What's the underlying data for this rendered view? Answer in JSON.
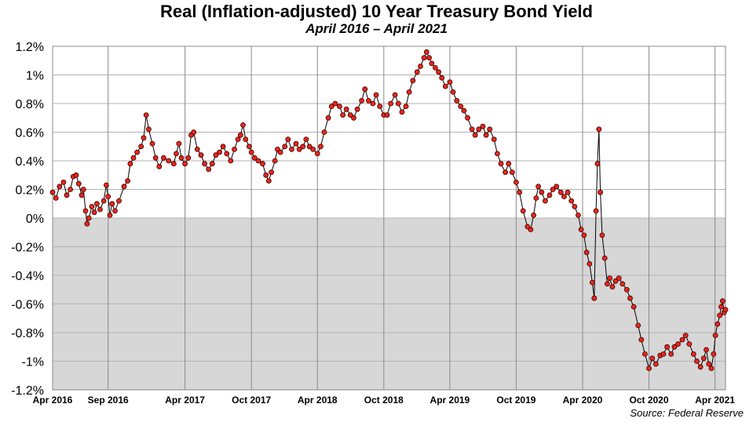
{
  "chart_data": {
    "type": "line",
    "title": "Real (Inflation-adjusted) 10 Year Treasury Bond Yield",
    "subtitle": "April 2016 – April 2021",
    "source": "Source: Federal Reserve",
    "ylim": [
      -1.2,
      1.2
    ],
    "y_ticks": [
      1.2,
      1.0,
      0.8,
      0.6,
      0.4,
      0.2,
      0.0,
      -0.2,
      -0.4,
      -0.6,
      -0.8,
      -1.0,
      -1.2
    ],
    "y_tick_labels": [
      "1.2%",
      "1%",
      "0.8%",
      "0.6%",
      "0.4%",
      "0.2%",
      "0%",
      "-0.2%",
      "-0.4%",
      "-0.6%",
      "-0.8%",
      "-1%",
      "-1.2%"
    ],
    "x_tick_labels": [
      "Apr 2016",
      "Sep 2016",
      "Apr 2017",
      "Oct 2017",
      "Apr 2018",
      "Oct 2018",
      "Apr 2019",
      "Oct 2019",
      "Apr 2020",
      "Oct 2020",
      "Apr 2021"
    ],
    "x_tick_dates": [
      "2016-04",
      "2016-09",
      "2017-04",
      "2017-10",
      "2018-04",
      "2018-10",
      "2019-04",
      "2019-10",
      "2020-04",
      "2020-10",
      "2021-04"
    ],
    "grid": true,
    "negative_region_shaded": true,
    "colors": {
      "line": "#000000",
      "marker_fill": "#e8261c",
      "marker_edge": "#3a0000",
      "negative_shade": "#d7d7d7",
      "grid": "#b3b3b3"
    },
    "series": [
      {
        "values": [
          [
            "2016-04-01",
            0.18
          ],
          [
            "2016-04-10",
            0.14
          ],
          [
            "2016-04-20",
            0.22
          ],
          [
            "2016-05-01",
            0.25
          ],
          [
            "2016-05-10",
            0.16
          ],
          [
            "2016-05-20",
            0.2
          ],
          [
            "2016-05-28",
            0.29
          ],
          [
            "2016-06-05",
            0.3
          ],
          [
            "2016-06-12",
            0.24
          ],
          [
            "2016-06-20",
            0.16
          ],
          [
            "2016-06-25",
            0.2
          ],
          [
            "2016-07-01",
            0.05
          ],
          [
            "2016-07-05",
            -0.04
          ],
          [
            "2016-07-10",
            0.0
          ],
          [
            "2016-07-18",
            0.08
          ],
          [
            "2016-07-25",
            0.04
          ],
          [
            "2016-08-01",
            0.1
          ],
          [
            "2016-08-10",
            0.06
          ],
          [
            "2016-08-20",
            0.12
          ],
          [
            "2016-08-27",
            0.23
          ],
          [
            "2016-09-01",
            0.15
          ],
          [
            "2016-09-06",
            0.02
          ],
          [
            "2016-09-12",
            0.1
          ],
          [
            "2016-09-20",
            0.05
          ],
          [
            "2016-10-01",
            0.12
          ],
          [
            "2016-10-15",
            0.22
          ],
          [
            "2016-10-25",
            0.26
          ],
          [
            "2016-11-01",
            0.38
          ],
          [
            "2016-11-10",
            0.42
          ],
          [
            "2016-11-20",
            0.46
          ],
          [
            "2016-12-01",
            0.5
          ],
          [
            "2016-12-08",
            0.56
          ],
          [
            "2016-12-15",
            0.72
          ],
          [
            "2016-12-22",
            0.62
          ],
          [
            "2017-01-01",
            0.52
          ],
          [
            "2017-01-10",
            0.42
          ],
          [
            "2017-01-20",
            0.36
          ],
          [
            "2017-02-01",
            0.42
          ],
          [
            "2017-02-15",
            0.4
          ],
          [
            "2017-03-01",
            0.38
          ],
          [
            "2017-03-08",
            0.45
          ],
          [
            "2017-03-15",
            0.52
          ],
          [
            "2017-03-22",
            0.42
          ],
          [
            "2017-04-01",
            0.38
          ],
          [
            "2017-04-10",
            0.42
          ],
          [
            "2017-04-18",
            0.58
          ],
          [
            "2017-04-25",
            0.6
          ],
          [
            "2017-05-05",
            0.48
          ],
          [
            "2017-05-15",
            0.44
          ],
          [
            "2017-05-25",
            0.38
          ],
          [
            "2017-06-05",
            0.34
          ],
          [
            "2017-06-15",
            0.38
          ],
          [
            "2017-06-25",
            0.44
          ],
          [
            "2017-07-05",
            0.46
          ],
          [
            "2017-07-15",
            0.5
          ],
          [
            "2017-07-25",
            0.45
          ],
          [
            "2017-08-05",
            0.4
          ],
          [
            "2017-08-15",
            0.48
          ],
          [
            "2017-08-25",
            0.55
          ],
          [
            "2017-09-01",
            0.58
          ],
          [
            "2017-09-08",
            0.65
          ],
          [
            "2017-09-15",
            0.55
          ],
          [
            "2017-09-25",
            0.5
          ],
          [
            "2017-10-01",
            0.46
          ],
          [
            "2017-10-10",
            0.42
          ],
          [
            "2017-10-20",
            0.4
          ],
          [
            "2017-11-01",
            0.38
          ],
          [
            "2017-11-10",
            0.3
          ],
          [
            "2017-11-18",
            0.26
          ],
          [
            "2017-11-25",
            0.32
          ],
          [
            "2017-12-05",
            0.4
          ],
          [
            "2017-12-12",
            0.48
          ],
          [
            "2017-12-20",
            0.46
          ],
          [
            "2018-01-01",
            0.5
          ],
          [
            "2018-01-10",
            0.55
          ],
          [
            "2018-01-20",
            0.48
          ],
          [
            "2018-02-01",
            0.52
          ],
          [
            "2018-02-10",
            0.48
          ],
          [
            "2018-02-20",
            0.5
          ],
          [
            "2018-03-01",
            0.55
          ],
          [
            "2018-03-10",
            0.5
          ],
          [
            "2018-03-20",
            0.48
          ],
          [
            "2018-04-01",
            0.45
          ],
          [
            "2018-04-10",
            0.5
          ],
          [
            "2018-04-20",
            0.6
          ],
          [
            "2018-05-01",
            0.7
          ],
          [
            "2018-05-10",
            0.78
          ],
          [
            "2018-05-20",
            0.8
          ],
          [
            "2018-06-01",
            0.78
          ],
          [
            "2018-06-10",
            0.72
          ],
          [
            "2018-06-20",
            0.76
          ],
          [
            "2018-07-01",
            0.72
          ],
          [
            "2018-07-10",
            0.7
          ],
          [
            "2018-07-20",
            0.76
          ],
          [
            "2018-08-01",
            0.82
          ],
          [
            "2018-08-10",
            0.9
          ],
          [
            "2018-08-20",
            0.82
          ],
          [
            "2018-09-01",
            0.8
          ],
          [
            "2018-09-10",
            0.86
          ],
          [
            "2018-09-20",
            0.78
          ],
          [
            "2018-10-01",
            0.72
          ],
          [
            "2018-10-10",
            0.72
          ],
          [
            "2018-10-20",
            0.8
          ],
          [
            "2018-11-01",
            0.86
          ],
          [
            "2018-11-10",
            0.8
          ],
          [
            "2018-11-20",
            0.74
          ],
          [
            "2018-12-01",
            0.78
          ],
          [
            "2018-12-10",
            0.88
          ],
          [
            "2018-12-20",
            0.96
          ],
          [
            "2019-01-01",
            1.02
          ],
          [
            "2019-01-10",
            1.06
          ],
          [
            "2019-01-20",
            1.12
          ],
          [
            "2019-01-27",
            1.16
          ],
          [
            "2019-02-03",
            1.12
          ],
          [
            "2019-02-10",
            1.08
          ],
          [
            "2019-02-20",
            1.05
          ],
          [
            "2019-03-01",
            1.02
          ],
          [
            "2019-03-10",
            0.98
          ],
          [
            "2019-03-20",
            0.92
          ],
          [
            "2019-04-01",
            0.95
          ],
          [
            "2019-04-10",
            0.88
          ],
          [
            "2019-04-20",
            0.82
          ],
          [
            "2019-05-01",
            0.78
          ],
          [
            "2019-05-10",
            0.75
          ],
          [
            "2019-05-20",
            0.7
          ],
          [
            "2019-06-01",
            0.62
          ],
          [
            "2019-06-10",
            0.58
          ],
          [
            "2019-06-20",
            0.62
          ],
          [
            "2019-07-01",
            0.64
          ],
          [
            "2019-07-10",
            0.58
          ],
          [
            "2019-07-20",
            0.62
          ],
          [
            "2019-08-01",
            0.55
          ],
          [
            "2019-08-10",
            0.45
          ],
          [
            "2019-08-20",
            0.38
          ],
          [
            "2019-09-01",
            0.32
          ],
          [
            "2019-09-10",
            0.38
          ],
          [
            "2019-09-20",
            0.32
          ],
          [
            "2019-10-01",
            0.25
          ],
          [
            "2019-10-10",
            0.18
          ],
          [
            "2019-10-20",
            0.05
          ],
          [
            "2019-11-01",
            -0.06
          ],
          [
            "2019-11-10",
            -0.08
          ],
          [
            "2019-11-18",
            0.02
          ],
          [
            "2019-11-25",
            0.14
          ],
          [
            "2019-12-01",
            0.22
          ],
          [
            "2019-12-10",
            0.18
          ],
          [
            "2019-12-20",
            0.12
          ],
          [
            "2020-01-01",
            0.16
          ],
          [
            "2020-01-10",
            0.2
          ],
          [
            "2020-01-20",
            0.22
          ],
          [
            "2020-02-01",
            0.18
          ],
          [
            "2020-02-10",
            0.15
          ],
          [
            "2020-02-20",
            0.18
          ],
          [
            "2020-03-01",
            0.12
          ],
          [
            "2020-03-10",
            0.08
          ],
          [
            "2020-03-20",
            0.02
          ],
          [
            "2020-03-28",
            -0.08
          ],
          [
            "2020-04-05",
            -0.12
          ],
          [
            "2020-04-12",
            -0.24
          ],
          [
            "2020-04-20",
            -0.32
          ],
          [
            "2020-04-28",
            -0.45
          ],
          [
            "2020-05-03",
            -0.56
          ],
          [
            "2020-05-08",
            0.05
          ],
          [
            "2020-05-12",
            0.38
          ],
          [
            "2020-05-16",
            0.62
          ],
          [
            "2020-05-20",
            0.18
          ],
          [
            "2020-05-25",
            -0.12
          ],
          [
            "2020-06-01",
            -0.28
          ],
          [
            "2020-06-08",
            -0.46
          ],
          [
            "2020-06-15",
            -0.42
          ],
          [
            "2020-06-22",
            -0.48
          ],
          [
            "2020-07-01",
            -0.44
          ],
          [
            "2020-07-10",
            -0.42
          ],
          [
            "2020-07-20",
            -0.46
          ],
          [
            "2020-08-01",
            -0.5
          ],
          [
            "2020-08-10",
            -0.56
          ],
          [
            "2020-08-20",
            -0.62
          ],
          [
            "2020-09-01",
            -0.75
          ],
          [
            "2020-09-10",
            -0.85
          ],
          [
            "2020-09-20",
            -0.95
          ],
          [
            "2020-10-01",
            -1.05
          ],
          [
            "2020-10-10",
            -0.98
          ],
          [
            "2020-10-20",
            -1.02
          ],
          [
            "2020-11-01",
            -0.96
          ],
          [
            "2020-11-10",
            -0.95
          ],
          [
            "2020-11-20",
            -0.9
          ],
          [
            "2020-12-01",
            -0.95
          ],
          [
            "2020-12-10",
            -0.9
          ],
          [
            "2020-12-20",
            -0.88
          ],
          [
            "2021-01-01",
            -0.85
          ],
          [
            "2021-01-10",
            -0.82
          ],
          [
            "2021-01-20",
            -0.88
          ],
          [
            "2021-02-01",
            -0.95
          ],
          [
            "2021-02-10",
            -1.0
          ],
          [
            "2021-02-20",
            -1.04
          ],
          [
            "2021-03-01",
            -0.98
          ],
          [
            "2021-03-08",
            -0.92
          ],
          [
            "2021-03-15",
            -1.02
          ],
          [
            "2021-03-22",
            -1.05
          ],
          [
            "2021-03-28",
            -0.95
          ],
          [
            "2021-04-02",
            -0.82
          ],
          [
            "2021-04-08",
            -0.74
          ],
          [
            "2021-04-14",
            -0.68
          ],
          [
            "2021-04-18",
            -0.62
          ],
          [
            "2021-04-22",
            -0.58
          ],
          [
            "2021-04-26",
            -0.66
          ],
          [
            "2021-04-30",
            -0.64
          ]
        ]
      }
    ]
  }
}
